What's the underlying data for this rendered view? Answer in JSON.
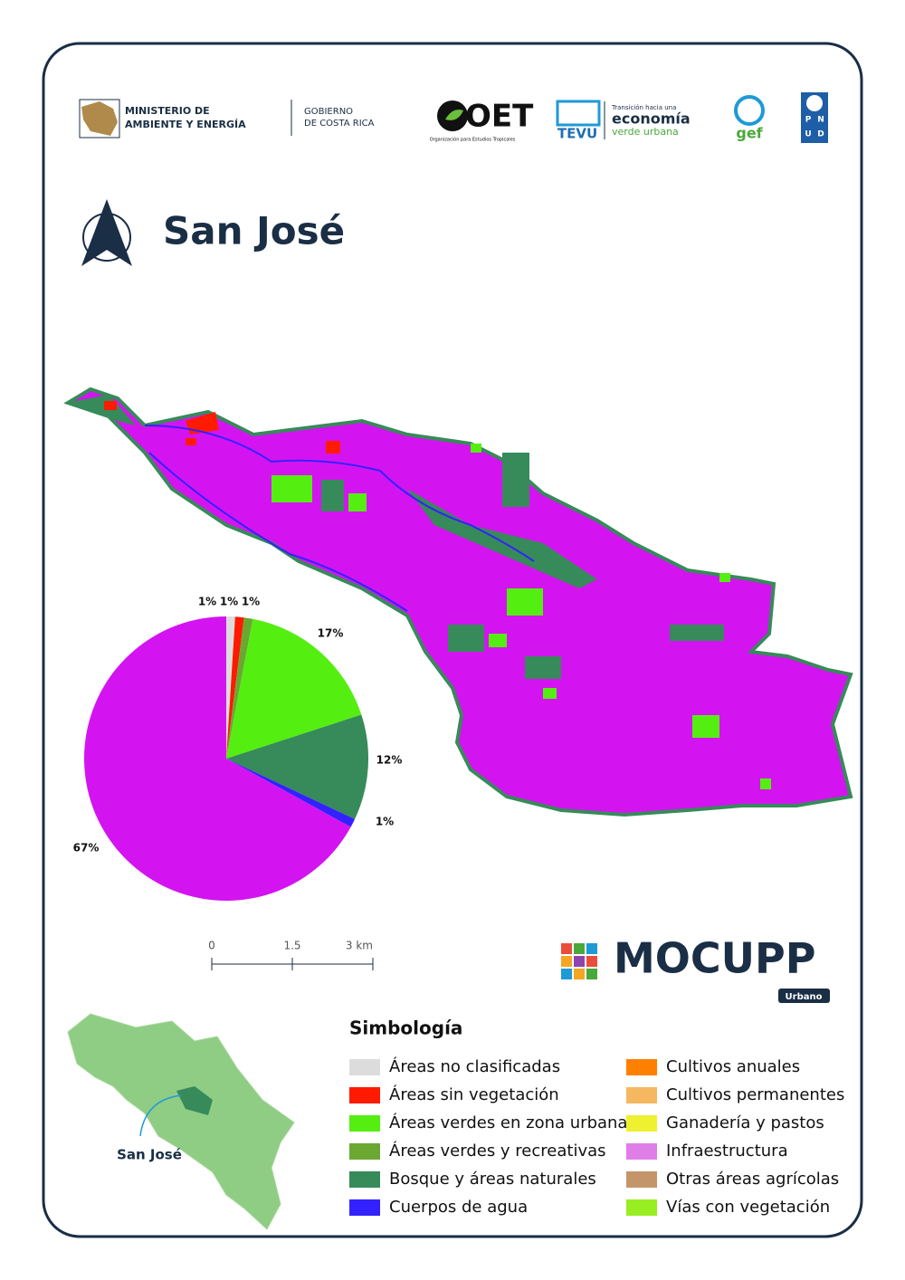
{
  "header": {
    "ministry": [
      "MINISTERIO DE",
      "AMBIENTE Y ENERGÍA"
    ],
    "government": [
      "GOBIERNO",
      "DE COSTA RICA"
    ],
    "oet": "OET",
    "oet_caption": "Organización para Estudios Tropicales",
    "tevu": "TEVU",
    "tevu_caption": [
      "Transición hacia una",
      "economía",
      "verde urbana"
    ],
    "gef": "gef",
    "pnud": [
      "P",
      "N",
      "U",
      "D"
    ]
  },
  "title": "San José",
  "chart_data": {
    "type": "pie",
    "values": [
      1,
      1,
      1,
      17,
      12,
      1,
      67
    ],
    "value_labels": [
      "1%",
      "1%",
      "1%",
      "17%",
      "12%",
      "1%",
      "67%"
    ],
    "colors": [
      "#dcdcdc",
      "#ff1a00",
      "#6aa832",
      "#55ee11",
      "#378a5a",
      "#3322ff",
      "#d414f0"
    ]
  },
  "scale_bar": [
    "0",
    "1.5",
    "3 km"
  ],
  "brand": {
    "name": "MOCUPP",
    "subtitle": "Urbano"
  },
  "inset_label": "San José",
  "legend": {
    "title": "Simbología",
    "items": [
      {
        "name": "Áreas no clasificadas",
        "color": "#dcdcdc"
      },
      {
        "name": "Áreas sin vegetación",
        "color": "#ff1a00"
      },
      {
        "name": "Áreas verdes en zona urbana",
        "color": "#55ee11"
      },
      {
        "name": "Áreas verdes y recreativas",
        "color": "#6aa832"
      },
      {
        "name": "Bosque y áreas naturales",
        "color": "#378a5a"
      },
      {
        "name": "Cuerpos de agua",
        "color": "#3322ff"
      },
      {
        "name": "Cultivos anuales",
        "color": "#ff8000"
      },
      {
        "name": "Cultivos permanentes",
        "color": "#f5b860"
      },
      {
        "name": "Ganadería y pastos",
        "color": "#eef030"
      },
      {
        "name": "Infraestructura",
        "color": "#e07ee8"
      },
      {
        "name": "Otras áreas agrícolas",
        "color": "#c4956a"
      },
      {
        "name": "Vías con vegetación",
        "color": "#99ee22"
      }
    ]
  }
}
